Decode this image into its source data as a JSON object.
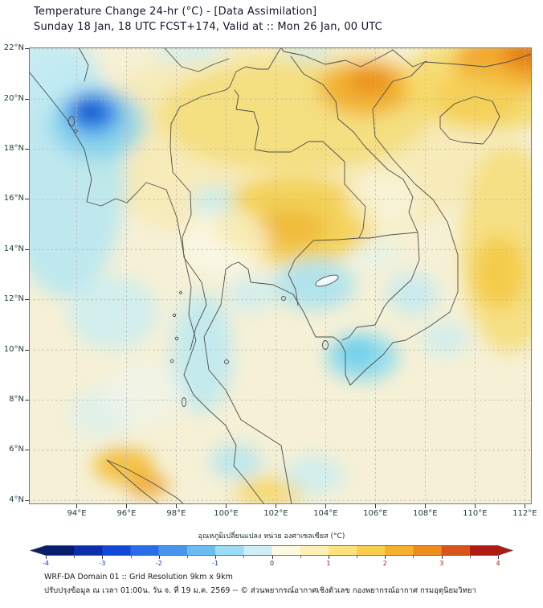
{
  "header": {
    "title": "Temperature Change 24-hr (°C) - [Data Assimilation]",
    "subtitle": "Sunday 18 Jan, 18 UTC FCST+174, Valid at :: Mon 26 Jan, 00 UTC"
  },
  "axes": {
    "lat_ticks": [
      "22°N",
      "20°N",
      "18°N",
      "16°N",
      "14°N",
      "12°N",
      "10°N",
      "8°N",
      "6°N",
      "4°N"
    ],
    "lon_ticks": [
      "94°E",
      "96°E",
      "98°E",
      "100°E",
      "102°E",
      "104°E",
      "106°E",
      "108°E",
      "110°E",
      "112°E"
    ]
  },
  "map": {
    "region": "Thailand / Indochina",
    "lon_range_deg_east": [
      92,
      112.4
    ],
    "lat_range_deg_north": [
      3.9,
      22.1
    ],
    "colors": {
      "base_warm": "#f6f1d6",
      "strong_cool": "#0a46c8",
      "cool": "#7ecfee",
      "warm": "#f3cf4e",
      "strong_warm": "#e4760e",
      "coastline": "#4d4d4d",
      "grid": "#b8b8b8"
    }
  },
  "colorbar": {
    "label": "อุณหภูมิเปลี่ยนแปลง หน่วย องศาเซลเซียส (°C)",
    "min": -4,
    "max": 4,
    "tick_labels": [
      "-4",
      "-3",
      "-2",
      "-1",
      "0",
      "1",
      "2",
      "3",
      "4"
    ],
    "negative_label_color": "#1535c8",
    "positive_label_color": "#b01c12",
    "zero_label_color": "#333333",
    "band_colors": [
      "#071e6e",
      "#0a2fa8",
      "#1148d6",
      "#2a6de8",
      "#4696ee",
      "#6cbcf2",
      "#9cdcf4",
      "#cdeef6",
      "#fcfae2",
      "#fdf0b4",
      "#fce27c",
      "#fbcf4e",
      "#f7b02c",
      "#ef8c1e",
      "#d9541a",
      "#b01c12"
    ]
  },
  "footer": {
    "line1": "WRF-DA Domain 01 :: Grid Resolution 9km x 9km",
    "line2": "ปรับปรุงข้อมูล ณ เวลา 01:00น. วัน จ. ที่ 19 ม.ค. 2569 -- © ส่วนพยากรณ์อากาศเชิงตัวเลข กองพยากรณ์อากาศ กรมอุตุนิยมวิทยา"
  }
}
